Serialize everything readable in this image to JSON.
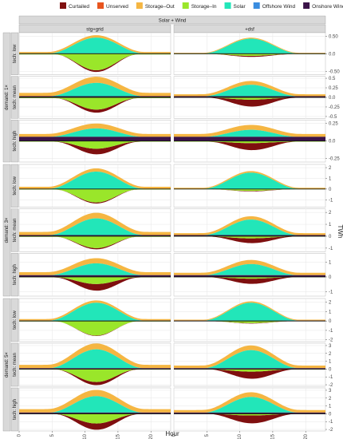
{
  "legend": {
    "items": [
      {
        "label": "Curtailed",
        "color": "#7f0f0f"
      },
      {
        "label": "Unserved",
        "color": "#e8551f"
      },
      {
        "label": "Storage–Out",
        "color": "#f5b642"
      },
      {
        "label": "Storage–In",
        "color": "#9ae62a"
      },
      {
        "label": "Solar",
        "color": "#22e6b9"
      },
      {
        "label": "Offshore Wind",
        "color": "#3a8de0"
      },
      {
        "label": "Onshore Wind",
        "color": "#3b1348"
      }
    ]
  },
  "chart_data": {
    "type": "area",
    "title": "",
    "top_strip": "Solar + Wind",
    "columns": [
      "stg+grid",
      "+dsf"
    ],
    "demand_groups": [
      "demand: 1×",
      "demand: 3×",
      "demand: 5×"
    ],
    "tech_rows": [
      "tech: low",
      "tech: mean",
      "tech: high"
    ],
    "xlabel": "Hour",
    "ylabel": "TWh",
    "xlim": [
      0,
      23
    ],
    "xticks": [
      0,
      5,
      10,
      15,
      20
    ],
    "panels": [
      {
        "demand": "demand: 1×",
        "tech": "tech: low",
        "ylim": [
          -0.6,
          0.6
        ],
        "yticks": [
          0.5,
          0.0,
          -0.5
        ],
        "stg+grid": {
          "solar": 0.45,
          "stgout": 0.05,
          "stgin": 0.45,
          "curt": 0.05,
          "wind": 0.01,
          "stgin_base": 0.02,
          "stgout_base": 0.02
        },
        "+dsf": {
          "solar": 0.42,
          "stgout": 0.02,
          "stgin": 0.05,
          "curt": 0.03,
          "wind": 0.01,
          "stgin_base": 0.01,
          "stgout_base": 0.01
        }
      },
      {
        "demand": "demand: 1×",
        "tech": "tech: mean",
        "ylim": [
          -0.55,
          0.55
        ],
        "yticks": [
          0.5,
          0.25,
          0.0,
          -0.25,
          -0.5
        ],
        "stg+grid": {
          "solar": 0.35,
          "stgout": 0.12,
          "stgin": 0.3,
          "curt": 0.08,
          "wind": 0.03,
          "stgin_base": 0.02,
          "stgout_base": 0.04
        },
        "+dsf": {
          "solar": 0.3,
          "stgout": 0.08,
          "stgin": 0.05,
          "curt": 0.18,
          "wind": 0.03,
          "stgin_base": 0.01,
          "stgout_base": 0.02
        }
      },
      {
        "demand": "demand: 1×",
        "tech": "tech: high",
        "ylim": [
          -0.3,
          0.3
        ],
        "yticks": [
          0.25,
          0.0,
          -0.25
        ],
        "stg+grid": {
          "solar": 0.12,
          "stgout": 0.05,
          "stgin": 0.1,
          "curt": 0.08,
          "wind": 0.06,
          "stgin_base": 0.01,
          "stgout_base": 0.02
        },
        "+dsf": {
          "solar": 0.1,
          "stgout": 0.05,
          "stgin": 0.02,
          "curt": 0.1,
          "wind": 0.06,
          "stgin_base": 0.01,
          "stgout_base": 0.02
        }
      },
      {
        "demand": "demand: 3×",
        "tech": "tech: low",
        "ylim": [
          -1.7,
          2.3
        ],
        "yticks": [
          2,
          1,
          0,
          -1
        ],
        "stg+grid": {
          "solar": 1.6,
          "stgout": 0.2,
          "stgin": 1.2,
          "curt": 0.1,
          "wind": 0.03,
          "stgin_base": 0.05,
          "stgout_base": 0.1
        },
        "+dsf": {
          "solar": 1.5,
          "stgout": 0.1,
          "stgin": 0.15,
          "curt": 0.05,
          "wind": 0.03,
          "stgin_base": 0.02,
          "stgout_base": 0.05
        }
      },
      {
        "demand": "demand: 3×",
        "tech": "tech: mean",
        "ylim": [
          -1.3,
          2.3
        ],
        "yticks": [
          2,
          1,
          0,
          -1
        ],
        "stg+grid": {
          "solar": 1.4,
          "stgout": 0.35,
          "stgin": 0.95,
          "curt": 0.1,
          "wind": 0.1,
          "stgin_base": 0.05,
          "stgout_base": 0.12
        },
        "+dsf": {
          "solar": 1.3,
          "stgout": 0.2,
          "stgin": 0.15,
          "curt": 0.4,
          "wind": 0.1,
          "stgin_base": 0.03,
          "stgout_base": 0.08
        }
      },
      {
        "demand": "demand: 3×",
        "tech": "tech: high",
        "ylim": [
          -1.3,
          1.6
        ],
        "yticks": [
          1,
          0,
          -1
        ],
        "stg+grid": {
          "solar": 0.8,
          "stgout": 0.25,
          "stgin": 0.45,
          "curt": 0.45,
          "wind": 0.12,
          "stgin_base": 0.03,
          "stgout_base": 0.1
        },
        "+dsf": {
          "solar": 0.75,
          "stgout": 0.2,
          "stgin": 0.1,
          "curt": 0.35,
          "wind": 0.12,
          "stgin_base": 0.02,
          "stgout_base": 0.08
        }
      },
      {
        "demand": "demand: 5×",
        "tech": "tech: low",
        "ylim": [
          -2.2,
          2.4
        ],
        "yticks": [
          2,
          1,
          0,
          -1,
          -2
        ],
        "stg+grid": {
          "solar": 1.9,
          "stgout": 0.15,
          "stgin": 1.5,
          "curt": 0.05,
          "wind": 0.05,
          "stgin_base": 0.05,
          "stgout_base": 0.1
        },
        "+dsf": {
          "solar": 1.9,
          "stgout": 0.1,
          "stgin": 0.2,
          "curt": 0.05,
          "wind": 0.05,
          "stgin_base": 0.02,
          "stgout_base": 0.05
        }
      },
      {
        "demand": "demand: 5×",
        "tech": "tech: mean",
        "ylim": [
          -2.2,
          3.3
        ],
        "yticks": [
          3,
          2,
          1,
          0,
          -1,
          -2
        ],
        "stg+grid": {
          "solar": 2.4,
          "stgout": 0.55,
          "stgin": 1.6,
          "curt": 0.4,
          "wind": 0.12,
          "stgin_base": 0.05,
          "stgout_base": 0.2
        },
        "+dsf": {
          "solar": 2.3,
          "stgout": 0.45,
          "stgin": 0.3,
          "curt": 0.9,
          "wind": 0.12,
          "stgin_base": 0.03,
          "stgout_base": 0.15
        }
      },
      {
        "demand": "demand: 5×",
        "tech": "tech: high",
        "ylim": [
          -2.2,
          3.3
        ],
        "yticks": [
          3,
          2,
          1,
          0,
          -1,
          -2
        ],
        "stg+grid": {
          "solar": 2.1,
          "stgout": 0.6,
          "stgin": 1.2,
          "curt": 0.8,
          "wind": 0.15,
          "stgin_base": 0.04,
          "stgout_base": 0.2
        },
        "+dsf": {
          "solar": 2.0,
          "stgout": 0.45,
          "stgin": 0.2,
          "curt": 1.0,
          "wind": 0.15,
          "stgin_base": 0.02,
          "stgout_base": 0.15
        }
      }
    ],
    "grid": true,
    "legend_position": "top"
  }
}
